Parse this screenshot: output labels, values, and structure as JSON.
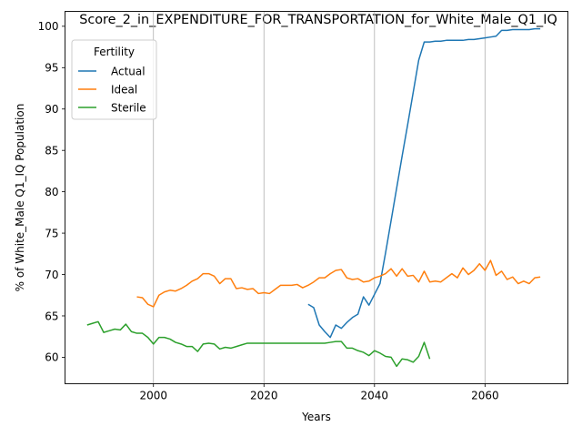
{
  "chart_data": {
    "type": "line",
    "title": "Score_2_in_EXPENDITURE_FOR_TRANSPORTATION_for_White_Male_Q1_IQ",
    "xlabel": "Years",
    "ylabel": "% of White_Male Q1_IQ Population",
    "xlim": [
      1984,
      2075
    ],
    "ylim": [
      56.8,
      101.8
    ],
    "xticks": [
      2000,
      2020,
      2040,
      2060
    ],
    "yticks": [
      60,
      65,
      70,
      75,
      80,
      85,
      90,
      95,
      100
    ],
    "grid": "x-only",
    "legend": {
      "title": "Fertility",
      "position": "upper-left"
    },
    "series": [
      {
        "name": "Actual",
        "color": "#1f77b4",
        "x": [
          2028,
          2029,
          2030,
          2031,
          2032,
          2033,
          2034,
          2035,
          2036,
          2037,
          2038,
          2039,
          2040,
          2041,
          2042,
          2043,
          2044,
          2045,
          2046,
          2047,
          2048,
          2049,
          2050,
          2051,
          2052,
          2053,
          2054,
          2055,
          2056,
          2057,
          2058,
          2059,
          2060,
          2061,
          2062,
          2063,
          2064,
          2065,
          2066,
          2067,
          2068,
          2069,
          2070
        ],
        "y": [
          66.4,
          66.0,
          63.9,
          63.1,
          62.4,
          63.9,
          63.5,
          64.2,
          64.8,
          65.2,
          67.3,
          66.3,
          67.6,
          68.9,
          72.6,
          76.5,
          80.4,
          84.3,
          88.1,
          92.0,
          95.9,
          98.1,
          98.1,
          98.2,
          98.2,
          98.3,
          98.3,
          98.3,
          98.3,
          98.4,
          98.4,
          98.5,
          98.6,
          98.7,
          98.8,
          99.5,
          99.5,
          99.6,
          99.6,
          99.6,
          99.6,
          99.7,
          99.7
        ]
      },
      {
        "name": "Ideal",
        "color": "#ff7f0e",
        "x": [
          1997,
          1998,
          1999,
          2000,
          2001,
          2002,
          2003,
          2004,
          2005,
          2006,
          2007,
          2008,
          2009,
          2010,
          2011,
          2012,
          2013,
          2014,
          2015,
          2016,
          2017,
          2018,
          2019,
          2020,
          2021,
          2022,
          2023,
          2024,
          2025,
          2026,
          2027,
          2028,
          2029,
          2030,
          2031,
          2032,
          2033,
          2034,
          2035,
          2036,
          2037,
          2038,
          2039,
          2040,
          2041,
          2042,
          2043,
          2044,
          2045,
          2046,
          2047,
          2048,
          2049,
          2050,
          2051,
          2052,
          2053,
          2054,
          2055,
          2056,
          2057,
          2058,
          2059,
          2060,
          2061,
          2062,
          2063,
          2064,
          2065,
          2066,
          2067,
          2068,
          2069,
          2070
        ],
        "y": [
          67.3,
          67.2,
          66.4,
          66.1,
          67.5,
          67.9,
          68.1,
          68.0,
          68.3,
          68.7,
          69.2,
          69.5,
          70.1,
          70.1,
          69.8,
          68.9,
          69.5,
          69.5,
          68.3,
          68.4,
          68.2,
          68.3,
          67.7,
          67.8,
          67.7,
          68.2,
          68.7,
          68.7,
          68.7,
          68.8,
          68.4,
          68.7,
          69.1,
          69.6,
          69.6,
          70.1,
          70.5,
          70.6,
          69.6,
          69.4,
          69.5,
          69.1,
          69.2,
          69.6,
          69.8,
          70.1,
          70.7,
          69.8,
          70.7,
          69.8,
          69.9,
          69.1,
          70.4,
          69.1,
          69.2,
          69.1,
          69.6,
          70.1,
          69.6,
          70.8,
          70.0,
          70.5,
          71.3,
          70.5,
          71.7,
          69.9,
          70.4,
          69.4,
          69.7,
          68.9,
          69.2,
          68.9,
          69.6,
          69.7
        ]
      },
      {
        "name": "Sterile",
        "color": "#2ca02c",
        "x": [
          1988,
          1989,
          1990,
          1991,
          1992,
          1993,
          1994,
          1995,
          1996,
          1997,
          1998,
          1999,
          2000,
          2001,
          2002,
          2003,
          2004,
          2005,
          2006,
          2007,
          2008,
          2009,
          2010,
          2011,
          2012,
          2013,
          2014,
          2015,
          2016,
          2017,
          2018,
          2019,
          2020,
          2021,
          2022,
          2023,
          2024,
          2025,
          2026,
          2027,
          2028,
          2029,
          2030,
          2031,
          2032,
          2033,
          2034,
          2035,
          2036,
          2037,
          2038,
          2039,
          2040,
          2041,
          2042,
          2043,
          2044,
          2045,
          2046,
          2047,
          2048,
          2049,
          2050
        ],
        "y": [
          63.9,
          64.1,
          64.3,
          63.0,
          63.2,
          63.4,
          63.3,
          64.0,
          63.1,
          62.9,
          62.9,
          62.4,
          61.6,
          62.4,
          62.4,
          62.2,
          61.8,
          61.6,
          61.3,
          61.3,
          60.7,
          61.6,
          61.7,
          61.6,
          61.0,
          61.2,
          61.1,
          61.3,
          61.5,
          61.7,
          61.7,
          61.7,
          61.7,
          61.7,
          61.7,
          61.7,
          61.7,
          61.7,
          61.7,
          61.7,
          61.7,
          61.7,
          61.7,
          61.7,
          61.8,
          61.9,
          61.9,
          61.1,
          61.1,
          60.8,
          60.6,
          60.2,
          60.8,
          60.5,
          60.1,
          60.0,
          58.9,
          59.8,
          59.7,
          59.4,
          60.1,
          61.8,
          59.8
        ]
      }
    ]
  }
}
